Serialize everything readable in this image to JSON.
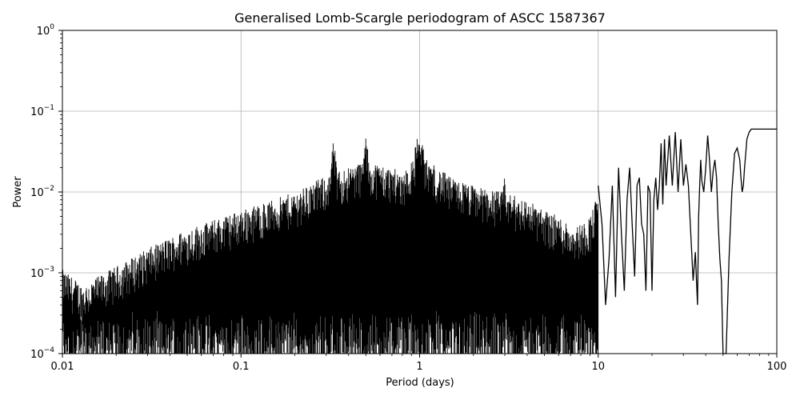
{
  "chart_data": {
    "type": "line",
    "title": "Generalised Lomb-Scargle periodogram of ASCC 1587367",
    "xlabel": "Period (days)",
    "ylabel": "Power",
    "xscale": "log",
    "yscale": "log",
    "xlim": [
      0.01,
      100
    ],
    "ylim": [
      0.0001,
      1
    ],
    "grid": true,
    "line_color": "#000000",
    "x_ticks": [
      {
        "value": 0.01,
        "label": "0.01"
      },
      {
        "value": 0.1,
        "label": "0.1"
      },
      {
        "value": 1,
        "label": "1"
      },
      {
        "value": 10,
        "label": "10"
      },
      {
        "value": 100,
        "label": "100"
      }
    ],
    "y_ticks": [
      {
        "value": 0.0001,
        "base": "10",
        "exp": "−4"
      },
      {
        "value": 0.001,
        "base": "10",
        "exp": "−3"
      },
      {
        "value": 0.01,
        "base": "10",
        "exp": "−2"
      },
      {
        "value": 0.1,
        "base": "10",
        "exp": "−1"
      },
      {
        "value": 1,
        "base": "10",
        "exp": "0"
      }
    ],
    "noise_envelope": {
      "period": [
        0.01,
        0.013,
        0.02,
        0.03,
        0.05,
        0.08,
        0.1,
        0.15,
        0.2,
        0.3,
        0.5,
        0.8,
        1.0,
        1.5,
        2,
        3,
        4,
        5,
        6,
        7,
        8,
        9,
        10
      ],
      "power": [
        0.0011,
        0.0007,
        0.0012,
        0.002,
        0.0035,
        0.005,
        0.006,
        0.008,
        0.01,
        0.016,
        0.025,
        0.018,
        0.03,
        0.015,
        0.012,
        0.01,
        0.008,
        0.006,
        0.005,
        0.004,
        0.004,
        0.005,
        0.01
      ]
    },
    "peaks": [
      {
        "period": 0.33,
        "power": 0.045
      },
      {
        "period": 0.5,
        "power": 0.052
      },
      {
        "period": 0.97,
        "power": 0.06
      },
      {
        "period": 1.02,
        "power": 0.058
      },
      {
        "period": 3.0,
        "power": 0.016
      }
    ],
    "series": [
      {
        "period": [
          10,
          10.5,
          11,
          11.5,
          12,
          12.5,
          13,
          13.5,
          14,
          14.5,
          15,
          15.5,
          16,
          16.5,
          17,
          17.5,
          18,
          18.5,
          19,
          19.5,
          20,
          20.5,
          21,
          21.5,
          22,
          22.5,
          23,
          23.5,
          24,
          25,
          26,
          27,
          28,
          29,
          30,
          31,
          32,
          33,
          34,
          35,
          35.5,
          36,
          36.5,
          37,
          37.5,
          38,
          39,
          40,
          41,
          42,
          43,
          44,
          45,
          46,
          47,
          48,
          49,
          50,
          52,
          54,
          56,
          58,
          60,
          62,
          63,
          64,
          65,
          66,
          67,
          68,
          70,
          72,
          75,
          78,
          81,
          84,
          87,
          90,
          93,
          96,
          100
        ],
        "power": [
          0.012,
          0.004,
          0.0004,
          0.0015,
          0.012,
          0.0005,
          0.02,
          0.003,
          0.0006,
          0.008,
          0.02,
          0.004,
          0.0009,
          0.012,
          0.015,
          0.004,
          0.003,
          0.0006,
          0.012,
          0.01,
          0.0006,
          0.008,
          0.015,
          0.006,
          0.012,
          0.04,
          0.007,
          0.045,
          0.012,
          0.05,
          0.012,
          0.055,
          0.01,
          0.045,
          0.012,
          0.022,
          0.012,
          0.003,
          0.0008,
          0.0018,
          0.0008,
          0.0004,
          0.005,
          0.012,
          0.025,
          0.014,
          0.01,
          0.02,
          0.05,
          0.025,
          0.01,
          0.018,
          0.025,
          0.015,
          0.004,
          0.0015,
          0.0008,
          0.0001,
          0.0001,
          0.0015,
          0.01,
          0.03,
          0.035,
          0.025,
          0.015,
          0.01,
          0.012,
          0.02,
          0.03,
          0.045,
          0.055,
          0.06,
          0.06,
          0.06,
          0.06,
          0.06,
          0.06,
          0.06,
          0.06,
          0.06,
          0.06
        ]
      }
    ]
  }
}
